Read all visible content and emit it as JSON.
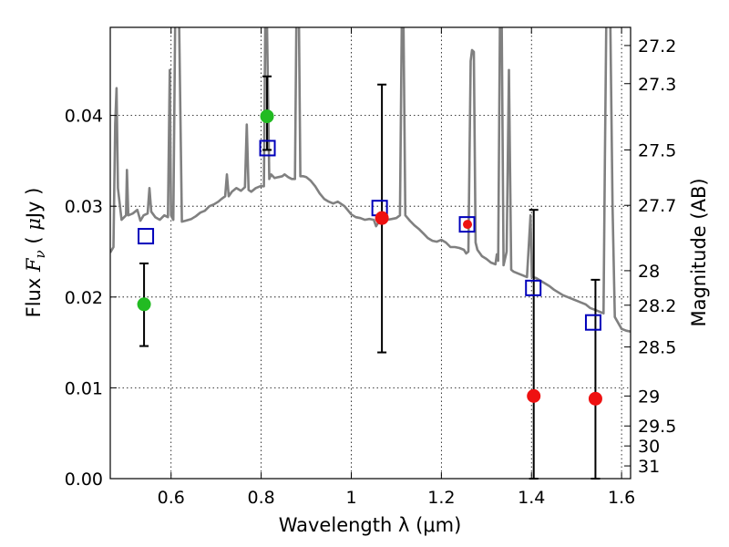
{
  "chart_data": {
    "type": "scatter",
    "xlabel": "Wavelength  λ (μm)",
    "ylabel_parts": [
      "Flux ",
      "F",
      "ν",
      "  ( ",
      "μ",
      "Jy )"
    ],
    "y2label": "Magnitude (AB)",
    "xlim": [
      0.465,
      1.62
    ],
    "ylim": [
      0.0,
      0.0497
    ],
    "grid": true,
    "x_ticks": [
      0.6,
      0.8,
      1.0,
      1.2,
      1.4,
      1.6
    ],
    "x_tick_labels": [
      "0.6",
      "0.8",
      "1",
      "1.2",
      "1.4",
      "1.6"
    ],
    "y_ticks": [
      0.0,
      0.01,
      0.02,
      0.03,
      0.04
    ],
    "y_tick_labels": [
      "0.00",
      "0.01",
      "0.02",
      "0.03",
      "0.04"
    ],
    "mag_ticks": [
      {
        "label": "27.2",
        "flux": 0.0477
      },
      {
        "label": "27.3",
        "flux": 0.0435
      },
      {
        "label": "27.5",
        "flux": 0.0362
      },
      {
        "label": "27.7",
        "flux": 0.0301
      },
      {
        "label": "28",
        "flux": 0.0229
      },
      {
        "label": "28.2",
        "flux": 0.0191
      },
      {
        "label": "28.5",
        "flux": 0.0145
      },
      {
        "label": "29",
        "flux": 0.0091
      },
      {
        "label": "29.5",
        "flux": 0.0058
      },
      {
        "label": "30",
        "flux": 0.0036
      },
      {
        "label": "31",
        "flux": 0.0014
      }
    ],
    "colors": {
      "spectrum": "#808080",
      "detected_marker": "#22bb22",
      "upper_marker": "#ee1111",
      "model_marker": "#0000bb",
      "errorbar": "#000000"
    },
    "spectrum": [
      [
        0.465,
        0.0249
      ],
      [
        0.472,
        0.0255
      ],
      [
        0.476,
        0.039
      ],
      [
        0.479,
        0.043
      ],
      [
        0.482,
        0.032
      ],
      [
        0.49,
        0.0285
      ],
      [
        0.5,
        0.029
      ],
      [
        0.502,
        0.034
      ],
      [
        0.505,
        0.029
      ],
      [
        0.515,
        0.0292
      ],
      [
        0.525,
        0.0296
      ],
      [
        0.532,
        0.0284
      ],
      [
        0.539,
        0.029
      ],
      [
        0.548,
        0.0292
      ],
      [
        0.552,
        0.032
      ],
      [
        0.556,
        0.0294
      ],
      [
        0.565,
        0.0288
      ],
      [
        0.575,
        0.0285
      ],
      [
        0.585,
        0.029
      ],
      [
        0.593,
        0.0288
      ],
      [
        0.597,
        0.045
      ],
      [
        0.6,
        0.029
      ],
      [
        0.605,
        0.0285
      ],
      [
        0.609,
        0.05
      ],
      [
        0.618,
        0.05
      ],
      [
        0.624,
        0.0283
      ],
      [
        0.632,
        0.0284
      ],
      [
        0.645,
        0.0286
      ],
      [
        0.655,
        0.0289
      ],
      [
        0.665,
        0.0293
      ],
      [
        0.675,
        0.0295
      ],
      [
        0.685,
        0.03
      ],
      [
        0.695,
        0.0302
      ],
      [
        0.705,
        0.0305
      ],
      [
        0.712,
        0.0308
      ],
      [
        0.72,
        0.0311
      ],
      [
        0.724,
        0.0335
      ],
      [
        0.728,
        0.0311
      ],
      [
        0.735,
        0.0316
      ],
      [
        0.745,
        0.032
      ],
      [
        0.755,
        0.0317
      ],
      [
        0.764,
        0.0321
      ],
      [
        0.768,
        0.039
      ],
      [
        0.772,
        0.0318
      ],
      [
        0.778,
        0.0316
      ],
      [
        0.788,
        0.032
      ],
      [
        0.798,
        0.0322
      ],
      [
        0.806,
        0.0322
      ],
      [
        0.809,
        0.05
      ],
      [
        0.813,
        0.05
      ],
      [
        0.818,
        0.033
      ],
      [
        0.822,
        0.0335
      ],
      [
        0.83,
        0.0331
      ],
      [
        0.838,
        0.0332
      ],
      [
        0.847,
        0.0333
      ],
      [
        0.852,
        0.0335
      ],
      [
        0.86,
        0.0332
      ],
      [
        0.868,
        0.033
      ],
      [
        0.875,
        0.033
      ],
      [
        0.878,
        0.05
      ],
      [
        0.884,
        0.05
      ],
      [
        0.887,
        0.0333
      ],
      [
        0.893,
        0.0333
      ],
      [
        0.9,
        0.0332
      ],
      [
        0.91,
        0.0328
      ],
      [
        0.92,
        0.0322
      ],
      [
        0.93,
        0.0314
      ],
      [
        0.94,
        0.0308
      ],
      [
        0.95,
        0.0305
      ],
      [
        0.96,
        0.0303
      ],
      [
        0.97,
        0.0305
      ],
      [
        0.985,
        0.03
      ],
      [
        1.0,
        0.0291
      ],
      [
        1.01,
        0.0288
      ],
      [
        1.02,
        0.0287
      ],
      [
        1.03,
        0.0285
      ],
      [
        1.04,
        0.0286
      ],
      [
        1.05,
        0.0285
      ],
      [
        1.055,
        0.0278
      ],
      [
        1.06,
        0.0282
      ],
      [
        1.066,
        0.0283
      ],
      [
        1.07,
        0.0282
      ],
      [
        1.08,
        0.0285
      ],
      [
        1.09,
        0.0286
      ],
      [
        1.1,
        0.0287
      ],
      [
        1.108,
        0.029
      ],
      [
        1.112,
        0.05
      ],
      [
        1.116,
        0.05
      ],
      [
        1.12,
        0.029
      ],
      [
        1.13,
        0.0284
      ],
      [
        1.14,
        0.0279
      ],
      [
        1.15,
        0.0275
      ],
      [
        1.16,
        0.027
      ],
      [
        1.17,
        0.0265
      ],
      [
        1.18,
        0.0262
      ],
      [
        1.19,
        0.0261
      ],
      [
        1.2,
        0.0263
      ],
      [
        1.21,
        0.026
      ],
      [
        1.22,
        0.0255
      ],
      [
        1.23,
        0.0255
      ],
      [
        1.24,
        0.0254
      ],
      [
        1.25,
        0.0252
      ],
      [
        1.255,
        0.0248
      ],
      [
        1.26,
        0.025
      ],
      [
        1.265,
        0.046
      ],
      [
        1.268,
        0.0472
      ],
      [
        1.272,
        0.047
      ],
      [
        1.276,
        0.026
      ],
      [
        1.28,
        0.0252
      ],
      [
        1.29,
        0.0245
      ],
      [
        1.3,
        0.0242
      ],
      [
        1.31,
        0.0238
      ],
      [
        1.32,
        0.0236
      ],
      [
        1.323,
        0.0247
      ],
      [
        1.326,
        0.024
      ],
      [
        1.33,
        0.05
      ],
      [
        1.334,
        0.05
      ],
      [
        1.338,
        0.0235
      ],
      [
        1.345,
        0.025
      ],
      [
        1.35,
        0.045
      ],
      [
        1.355,
        0.023
      ],
      [
        1.36,
        0.0228
      ],
      [
        1.37,
        0.0226
      ],
      [
        1.38,
        0.0224
      ],
      [
        1.39,
        0.0222
      ],
      [
        1.398,
        0.029
      ],
      [
        1.401,
        0.0222
      ],
      [
        1.41,
        0.0221
      ],
      [
        1.42,
        0.0218
      ],
      [
        1.43,
        0.0215
      ],
      [
        1.44,
        0.0212
      ],
      [
        1.45,
        0.0208
      ],
      [
        1.46,
        0.0205
      ],
      [
        1.47,
        0.0202
      ],
      [
        1.48,
        0.02
      ],
      [
        1.49,
        0.0198
      ],
      [
        1.5,
        0.0196
      ],
      [
        1.51,
        0.0194
      ],
      [
        1.52,
        0.0192
      ],
      [
        1.53,
        0.0188
      ],
      [
        1.54,
        0.0186
      ],
      [
        1.55,
        0.0184
      ],
      [
        1.56,
        0.0182
      ],
      [
        1.563,
        0.035
      ],
      [
        1.566,
        0.05
      ],
      [
        1.575,
        0.05
      ],
      [
        1.58,
        0.03
      ],
      [
        1.585,
        0.0178
      ],
      [
        1.6,
        0.0165
      ],
      [
        1.61,
        0.0163
      ],
      [
        1.62,
        0.0162
      ]
    ],
    "observed": [
      {
        "x": 0.54,
        "y": 0.0192,
        "yerr_low": 0.0146,
        "yerr_high": 0.0237,
        "kind": "detected"
      },
      {
        "x": 0.813,
        "y": 0.0399,
        "yerr_low": 0.0362,
        "yerr_high": 0.0443,
        "kind": "detected"
      },
      {
        "x": 1.068,
        "y": 0.0287,
        "yerr_low": 0.0139,
        "yerr_high": 0.0434,
        "kind": "upper"
      },
      {
        "x": 1.258,
        "y": 0.028,
        "kind": "upper"
      },
      {
        "x": 1.405,
        "y": 0.0091,
        "yerr_low": 0.0,
        "yerr_high": 0.0296,
        "kind": "upper"
      },
      {
        "x": 1.542,
        "y": 0.0088,
        "yerr_low": 0.0,
        "yerr_high": 0.0219,
        "kind": "upper"
      }
    ],
    "model": [
      {
        "x": 0.544,
        "y": 0.0267
      },
      {
        "x": 0.814,
        "y": 0.0364
      },
      {
        "x": 1.063,
        "y": 0.0298
      },
      {
        "x": 1.257,
        "y": 0.028
      },
      {
        "x": 1.404,
        "y": 0.021
      },
      {
        "x": 1.537,
        "y": 0.0172
      }
    ]
  }
}
